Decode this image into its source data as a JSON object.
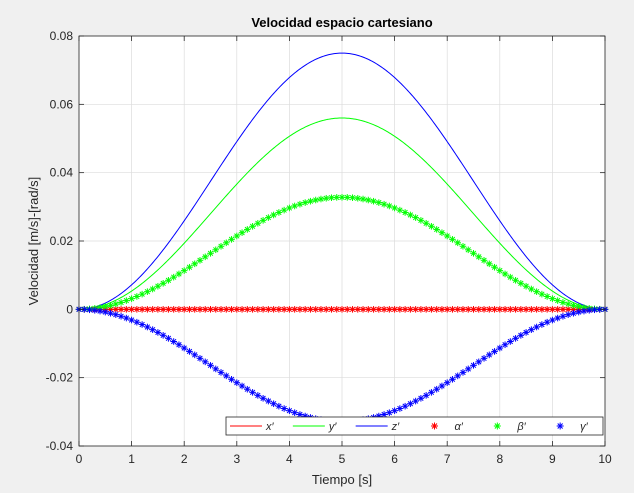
{
  "chart_data": {
    "type": "line",
    "title": "Velocidad espacio cartesiano",
    "xlabel": "Tiempo [s]",
    "ylabel": "Velocidad [m/s]-[rad/s]",
    "xlim": [
      0,
      10
    ],
    "ylim": [
      -0.04,
      0.08
    ],
    "x_ticks": [
      "0",
      "1",
      "2",
      "3",
      "4",
      "5",
      "6",
      "7",
      "8",
      "9",
      "10"
    ],
    "y_ticks": [
      "-0.04",
      "-0.02",
      "0",
      "0.02",
      "0.04",
      "0.06",
      "0.08"
    ],
    "grid": true,
    "legend_position": "bottom-right",
    "legend_orientation": "horizontal",
    "series": [
      {
        "name": "x′",
        "style": "line",
        "color": "#ff0000",
        "peak": 0
      },
      {
        "name": "y′",
        "style": "line",
        "color": "#00ff00",
        "peak": 0.056
      },
      {
        "name": "z′",
        "style": "line",
        "color": "#0000ff",
        "peak": 0.075
      },
      {
        "name": "α′",
        "style": "markers",
        "marker": "*",
        "color": "#ff0000",
        "peak": 0
      },
      {
        "name": "β′",
        "style": "markers",
        "marker": "*",
        "color": "#00ff00",
        "peak": 0.0328
      },
      {
        "name": "γ′",
        "style": "markers",
        "marker": "*",
        "color": "#0000ff",
        "peak": -0.0328
      }
    ],
    "profile": "sin^2(pi*t/10)",
    "marker_sample_step": 0.1
  }
}
